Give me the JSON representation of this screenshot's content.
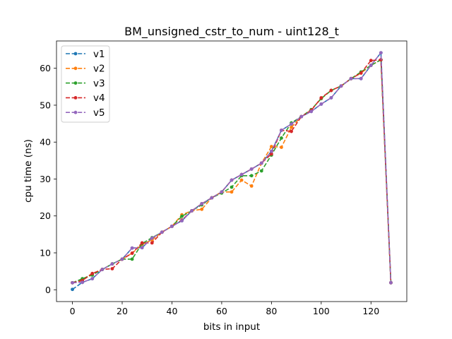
{
  "chart_data": {
    "type": "line",
    "title": "BM_unsigned_cstr_to_num - uint128_t",
    "xlabel": "bits in input",
    "ylabel": "cpu time (ns)",
    "xlim": [
      -6.4,
      134.4
    ],
    "ylim": [
      -3.2,
      67.4
    ],
    "xticks": [
      0,
      20,
      40,
      60,
      80,
      100,
      120
    ],
    "yticks": [
      0,
      10,
      20,
      30,
      40,
      50,
      60
    ],
    "grid": false,
    "legend_position": "top-left",
    "line_style": "dashed with dot markers",
    "series": [
      {
        "name": "v1",
        "color": "#1f77b4",
        "points": [
          [
            0,
            0.1
          ],
          [
            4,
            2.0
          ],
          [
            8,
            3.0
          ],
          [
            12,
            5.5
          ],
          [
            16,
            7.0
          ],
          [
            20,
            8.3
          ],
          [
            24,
            11.3
          ],
          [
            28,
            11.4
          ],
          [
            32,
            14.0
          ],
          [
            36,
            15.6
          ],
          [
            40,
            17.2
          ],
          [
            44,
            18.7
          ],
          [
            48,
            21.4
          ],
          [
            52,
            23.3
          ],
          [
            56,
            24.9
          ],
          [
            60,
            26.5
          ],
          [
            64,
            29.7
          ],
          [
            68,
            31.2
          ],
          [
            72,
            32.7
          ],
          [
            76,
            34.3
          ],
          [
            80,
            37.5
          ],
          [
            84,
            43.2
          ],
          [
            88,
            44.9
          ],
          [
            92,
            46.9
          ],
          [
            96,
            48.3
          ],
          [
            100,
            50.3
          ],
          [
            104,
            52.0
          ],
          [
            108,
            55.2
          ],
          [
            112,
            57.2
          ],
          [
            116,
            57.2
          ],
          [
            120,
            60.8
          ],
          [
            124,
            64.2
          ],
          [
            128,
            1.9
          ]
        ]
      },
      {
        "name": "v2",
        "color": "#ff7f0e",
        "points": [
          [
            0,
            1.9
          ],
          [
            4,
            2.8
          ],
          [
            8,
            4.4
          ],
          [
            12,
            5.5
          ],
          [
            16,
            7.0
          ],
          [
            20,
            8.3
          ],
          [
            24,
            9.9
          ],
          [
            28,
            12.3
          ],
          [
            32,
            13.5
          ],
          [
            36,
            15.6
          ],
          [
            40,
            17.2
          ],
          [
            44,
            20.3
          ],
          [
            48,
            21.4
          ],
          [
            52,
            21.8
          ],
          [
            56,
            24.9
          ],
          [
            60,
            26.5
          ],
          [
            64,
            26.5
          ],
          [
            68,
            29.7
          ],
          [
            72,
            28.1
          ],
          [
            76,
            34.3
          ],
          [
            80,
            38.8
          ],
          [
            84,
            38.6
          ],
          [
            88,
            44.0
          ],
          [
            92,
            46.9
          ],
          [
            96,
            48.8
          ],
          [
            100,
            51.8
          ],
          [
            104,
            54.0
          ],
          [
            108,
            55.2
          ],
          [
            112,
            57.2
          ],
          [
            116,
            58.7
          ],
          [
            120,
            60.8
          ],
          [
            124,
            62.3
          ],
          [
            128,
            1.9
          ]
        ]
      },
      {
        "name": "v3",
        "color": "#2ca02c",
        "points": [
          [
            0,
            1.9
          ],
          [
            4,
            3.0
          ],
          [
            8,
            4.0
          ],
          [
            12,
            5.5
          ],
          [
            16,
            7.0
          ],
          [
            20,
            8.3
          ],
          [
            24,
            8.3
          ],
          [
            28,
            12.5
          ],
          [
            32,
            14.1
          ],
          [
            36,
            15.6
          ],
          [
            40,
            17.2
          ],
          [
            44,
            19.9
          ],
          [
            48,
            21.4
          ],
          [
            52,
            23.0
          ],
          [
            56,
            24.9
          ],
          [
            60,
            26.2
          ],
          [
            64,
            27.8
          ],
          [
            68,
            30.9
          ],
          [
            72,
            30.9
          ],
          [
            76,
            32.2
          ],
          [
            80,
            36.5
          ],
          [
            84,
            41.1
          ],
          [
            88,
            45.2
          ],
          [
            92,
            46.9
          ],
          [
            96,
            48.8
          ],
          [
            100,
            51.8
          ],
          [
            104,
            54.0
          ],
          [
            108,
            55.2
          ],
          [
            112,
            57.2
          ],
          [
            116,
            59.0
          ],
          [
            120,
            60.8
          ],
          [
            124,
            62.3
          ],
          [
            128,
            1.9
          ]
        ]
      },
      {
        "name": "v4",
        "color": "#d62728",
        "points": [
          [
            0,
            1.9
          ],
          [
            4,
            2.5
          ],
          [
            8,
            4.4
          ],
          [
            12,
            5.5
          ],
          [
            16,
            5.7
          ],
          [
            20,
            8.3
          ],
          [
            24,
            9.9
          ],
          [
            28,
            12.7
          ],
          [
            32,
            12.7
          ],
          [
            36,
            15.6
          ],
          [
            40,
            17.2
          ],
          [
            44,
            18.9
          ],
          [
            48,
            21.4
          ],
          [
            52,
            23.3
          ],
          [
            56,
            24.9
          ],
          [
            60,
            26.5
          ],
          [
            64,
            29.7
          ],
          [
            68,
            31.2
          ],
          [
            72,
            32.7
          ],
          [
            76,
            34.3
          ],
          [
            80,
            36.8
          ],
          [
            84,
            43.2
          ],
          [
            88,
            42.9
          ],
          [
            92,
            46.9
          ],
          [
            96,
            48.6
          ],
          [
            100,
            52.0
          ],
          [
            104,
            54.0
          ],
          [
            108,
            55.2
          ],
          [
            112,
            57.2
          ],
          [
            116,
            58.7
          ],
          [
            120,
            62.1
          ],
          [
            124,
            62.3
          ],
          [
            128,
            1.9
          ]
        ]
      },
      {
        "name": "v5",
        "color": "#9467bd",
        "points": [
          [
            0,
            1.9
          ],
          [
            4,
            2.0
          ],
          [
            8,
            3.0
          ],
          [
            12,
            5.5
          ],
          [
            16,
            7.0
          ],
          [
            20,
            8.3
          ],
          [
            24,
            11.3
          ],
          [
            28,
            11.4
          ],
          [
            32,
            14.0
          ],
          [
            36,
            15.6
          ],
          [
            40,
            17.2
          ],
          [
            44,
            18.7
          ],
          [
            48,
            21.4
          ],
          [
            52,
            23.3
          ],
          [
            56,
            24.9
          ],
          [
            60,
            26.5
          ],
          [
            64,
            29.7
          ],
          [
            68,
            31.2
          ],
          [
            72,
            32.7
          ],
          [
            76,
            34.3
          ],
          [
            80,
            37.5
          ],
          [
            84,
            43.2
          ],
          [
            88,
            44.9
          ],
          [
            92,
            46.9
          ],
          [
            96,
            48.3
          ],
          [
            100,
            50.3
          ],
          [
            104,
            52.0
          ],
          [
            108,
            55.2
          ],
          [
            112,
            57.2
          ],
          [
            116,
            57.2
          ],
          [
            120,
            60.8
          ],
          [
            124,
            64.2
          ],
          [
            128,
            1.9
          ]
        ]
      }
    ]
  }
}
